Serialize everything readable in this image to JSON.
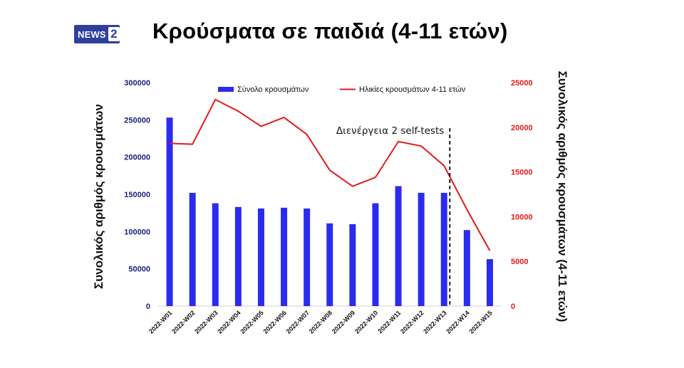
{
  "logo": {
    "part1": "NEWS",
    "part2": "2"
  },
  "title": "Κρούσματα σε παιδιά (4-11 ετών)",
  "chart_data": {
    "type": "bar+line",
    "categories": [
      "2022-W01",
      "2022-W02",
      "2022-W03",
      "2022-W04",
      "2022-W05",
      "2022-W06",
      "2022-W07",
      "2022-W08",
      "2022-W09",
      "2022-W10",
      "2022-W11",
      "2022-W12",
      "2022-W13",
      "2022-W14",
      "2022-W15"
    ],
    "series": [
      {
        "name": "Σύνολο κρουσμάτων",
        "type": "bar",
        "axis": "left",
        "color": "#2b2bf0",
        "values": [
          253000,
          152000,
          138000,
          133000,
          131000,
          132000,
          131000,
          111000,
          110000,
          138000,
          161000,
          152000,
          152000,
          102000,
          63000
        ]
      },
      {
        "name": "Ηλικίες κρουσμάτων 4-11 ετών",
        "type": "line",
        "axis": "right",
        "color": "#e51a1a",
        "values": [
          18200,
          18100,
          23100,
          21800,
          20100,
          21100,
          19200,
          15200,
          13400,
          14400,
          18400,
          17900,
          15700,
          10800,
          6200
        ]
      }
    ],
    "left_axis": {
      "label": "Συνολικός αριθμός κρουσμάτων",
      "ylim": [
        0,
        300000
      ],
      "ticks": [
        0,
        50000,
        100000,
        150000,
        200000,
        250000,
        300000
      ],
      "tick_color": "#1a237e"
    },
    "right_axis": {
      "label": "Συνολικός αριθμός κρουσμάτων (4-11 ετών)",
      "ylim": [
        0,
        25000
      ],
      "ticks": [
        0,
        5000,
        10000,
        15000,
        20000,
        25000
      ],
      "tick_color": "#e51a1a"
    },
    "annotation": {
      "text": "Διενέργεια 2 self-tests",
      "after_category": "2022-W13",
      "line_style": "dashed"
    },
    "legend_position": "top",
    "grid": false
  }
}
